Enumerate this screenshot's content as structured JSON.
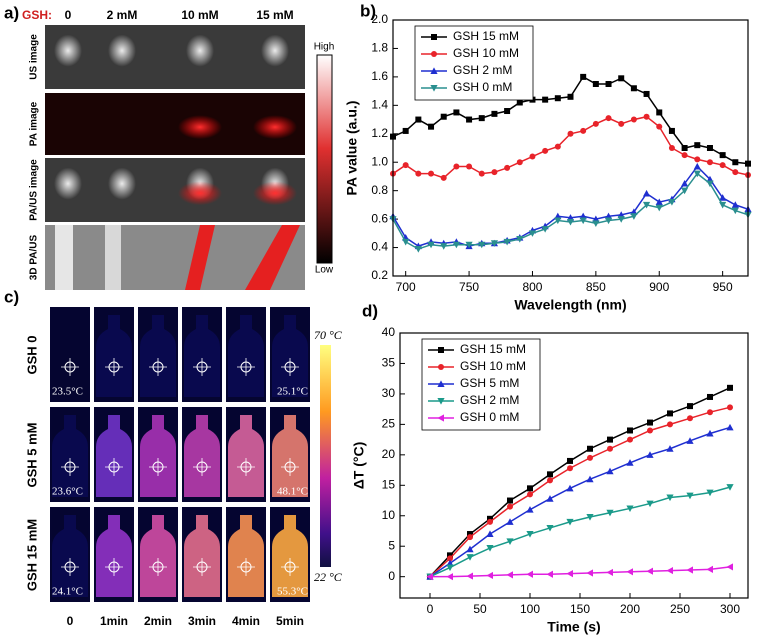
{
  "panel_a": {
    "panel_label": "a)",
    "gsh_label": "GSH:",
    "columns": [
      "0",
      "2 mM",
      "10 mM",
      "15 mM"
    ],
    "rows": [
      "US image",
      "PA image",
      "PA/US image",
      "3D PA/US"
    ],
    "colorbar_high": "High",
    "colorbar_low": "Low"
  },
  "panel_c": {
    "panel_label": "c)",
    "columns": [
      "0",
      "1min",
      "2min",
      "3min",
      "4min",
      "5min"
    ],
    "rows": [
      {
        "label": "GSH 0",
        "start_temp": "23.5°C",
        "end_temp": "25.1°C"
      },
      {
        "label": "GSH 5 mM",
        "start_temp": "23.6°C",
        "end_temp": "48.1°C"
      },
      {
        "label": "GSH 15 mM",
        "start_temp": "24.1°C",
        "end_temp": "55.3°C"
      }
    ],
    "colorbar_max": "70 °C",
    "colorbar_min": "22 °C"
  },
  "chart_data": [
    {
      "type": "line",
      "panel_label": "b)",
      "xlabel": "Wavelength (nm)",
      "ylabel": "PA value (a.u.)",
      "x": [
        690,
        700,
        710,
        720,
        730,
        740,
        750,
        760,
        770,
        780,
        790,
        800,
        810,
        820,
        830,
        840,
        850,
        860,
        870,
        880,
        890,
        900,
        910,
        920,
        930,
        940,
        950,
        960,
        970
      ],
      "xlim": [
        690,
        970
      ],
      "xticks": [
        700,
        750,
        800,
        850,
        900,
        950
      ],
      "ylim": [
        0.2,
        2.0
      ],
      "yticks": [
        0.2,
        0.4,
        0.6,
        0.8,
        {
          "value": 1,
          "label": "1.0"
        },
        1.2,
        1.4,
        1.6,
        1.8,
        {
          "value": 2,
          "label": "2.0"
        }
      ],
      "legend": "upper left",
      "series": [
        {
          "name": "GSH 15 mM",
          "color": "#000000",
          "marker": "square",
          "values": [
            1.18,
            1.22,
            1.3,
            1.25,
            1.32,
            1.35,
            1.3,
            1.31,
            1.34,
            1.36,
            1.42,
            1.44,
            1.44,
            1.45,
            1.46,
            1.6,
            1.55,
            1.55,
            1.59,
            1.52,
            1.48,
            1.35,
            1.22,
            1.1,
            1.12,
            1.1,
            1.05,
            1.0,
            0.99
          ]
        },
        {
          "name": "GSH 10 mM",
          "color": "#e8232a",
          "marker": "circle",
          "values": [
            0.92,
            0.98,
            0.92,
            0.92,
            0.89,
            0.97,
            0.97,
            0.92,
            0.93,
            0.96,
            1.0,
            1.04,
            1.08,
            1.11,
            1.2,
            1.22,
            1.27,
            1.31,
            1.27,
            1.3,
            1.32,
            1.25,
            1.1,
            1.05,
            1.02,
            1.0,
            0.98,
            0.93,
            0.91
          ]
        },
        {
          "name": "GSH 2 mM",
          "color": "#1f2fd0",
          "marker": "triangle-up",
          "values": [
            0.62,
            0.47,
            0.41,
            0.44,
            0.43,
            0.44,
            0.41,
            0.43,
            0.43,
            0.45,
            0.47,
            0.52,
            0.55,
            0.62,
            0.61,
            0.62,
            0.6,
            0.62,
            0.63,
            0.65,
            0.78,
            0.72,
            0.74,
            0.85,
            0.97,
            0.88,
            0.75,
            0.7,
            0.67
          ]
        },
        {
          "name": "GSH 0 mM",
          "color": "#2a8f8f",
          "marker": "triangle-down",
          "values": [
            0.6,
            0.44,
            0.39,
            0.42,
            0.41,
            0.42,
            0.42,
            0.42,
            0.43,
            0.44,
            0.46,
            0.5,
            0.53,
            0.59,
            0.58,
            0.59,
            0.57,
            0.59,
            0.6,
            0.62,
            0.7,
            0.68,
            0.72,
            0.8,
            0.92,
            0.85,
            0.7,
            0.66,
            0.63
          ]
        }
      ]
    },
    {
      "type": "line",
      "panel_label": "d)",
      "xlabel": "Time (s)",
      "ylabel": "ΔT (°C)",
      "x": [
        0,
        20,
        40,
        60,
        80,
        100,
        120,
        140,
        160,
        180,
        200,
        220,
        240,
        260,
        280,
        300
      ],
      "xlim": [
        -30,
        318
      ],
      "xticks": [
        0,
        50,
        100,
        150,
        200,
        250,
        300
      ],
      "ylim": [
        -3.5,
        40
      ],
      "yticks": [
        0,
        5,
        10,
        15,
        20,
        25,
        30,
        35,
        40
      ],
      "legend": "upper left",
      "series": [
        {
          "name": "GSH 15 mM",
          "color": "#000000",
          "marker": "square",
          "values": [
            0,
            3.5,
            7,
            9.5,
            12.5,
            14.5,
            16.8,
            19,
            21,
            22.5,
            24,
            25.3,
            26.8,
            28,
            29.5,
            31
          ]
        },
        {
          "name": "GSH 10 mM",
          "color": "#e8232a",
          "marker": "circle",
          "values": [
            0,
            3,
            6.5,
            9,
            11.5,
            13.5,
            15.8,
            17.8,
            19.5,
            21,
            22.5,
            24,
            25,
            26,
            27,
            27.8
          ]
        },
        {
          "name": "GSH 5 mM",
          "color": "#1f2fd0",
          "marker": "triangle-up",
          "values": [
            0,
            2.2,
            4.5,
            7,
            9,
            11,
            12.8,
            14.5,
            16,
            17.3,
            18.7,
            20,
            21,
            22.3,
            23.5,
            24.5
          ]
        },
        {
          "name": "GSH 2 mM",
          "color": "#1a9a8a",
          "marker": "triangle-down",
          "values": [
            0,
            1.5,
            3.2,
            4.7,
            5.8,
            7,
            8,
            9,
            9.8,
            10.5,
            11.2,
            12,
            13,
            13.3,
            13.8,
            14.7
          ]
        },
        {
          "name": "GSH 0 mM",
          "color": "#e020e0",
          "marker": "triangle-left",
          "values": [
            0,
            0,
            0.1,
            0.2,
            0.3,
            0.4,
            0.4,
            0.5,
            0.6,
            0.7,
            0.8,
            0.9,
            1,
            1.1,
            1.2,
            1.6
          ]
        }
      ]
    }
  ]
}
